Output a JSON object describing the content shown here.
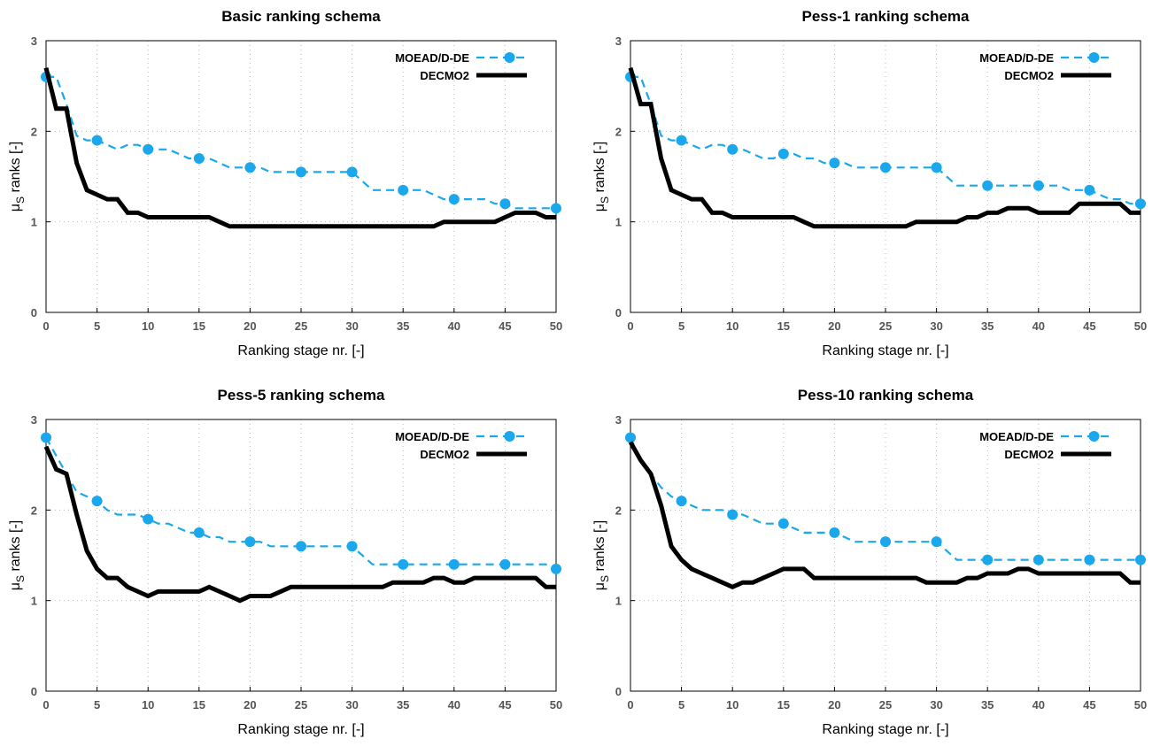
{
  "colors": {
    "moead": "#1aa7ec",
    "decmo2": "#000000"
  },
  "chart_data": [
    {
      "type": "line",
      "title": "Basic ranking schema",
      "xlabel": "Ranking stage nr. [-]",
      "ylabel_main": "μ",
      "ylabel_sub": "S",
      "ylabel_rest": " ranks [-]",
      "xlim": [
        0,
        50
      ],
      "ylim": [
        0,
        3
      ],
      "xticks": [
        0,
        5,
        10,
        15,
        20,
        25,
        30,
        35,
        40,
        45,
        50
      ],
      "yticks": [
        0,
        1,
        2,
        3
      ],
      "grid": true,
      "legend_position": "top-right",
      "series": [
        {
          "name": "MOEAD/D-DE",
          "style": "dashed-markers",
          "x": [
            0,
            1,
            2,
            3,
            4,
            5,
            6,
            7,
            8,
            9,
            10,
            11,
            12,
            13,
            14,
            15,
            16,
            17,
            18,
            19,
            20,
            21,
            22,
            23,
            24,
            25,
            26,
            27,
            28,
            29,
            30,
            31,
            32,
            33,
            34,
            35,
            36,
            37,
            38,
            39,
            40,
            41,
            42,
            43,
            44,
            45,
            46,
            47,
            48,
            49,
            50
          ],
          "y": [
            2.6,
            2.6,
            2.3,
            1.95,
            1.9,
            1.9,
            1.85,
            1.8,
            1.85,
            1.85,
            1.8,
            1.8,
            1.8,
            1.75,
            1.7,
            1.7,
            1.7,
            1.65,
            1.6,
            1.6,
            1.6,
            1.6,
            1.55,
            1.55,
            1.55,
            1.55,
            1.55,
            1.55,
            1.55,
            1.55,
            1.55,
            1.45,
            1.35,
            1.35,
            1.35,
            1.35,
            1.35,
            1.35,
            1.3,
            1.25,
            1.25,
            1.25,
            1.25,
            1.25,
            1.2,
            1.2,
            1.15,
            1.15,
            1.15,
            1.15,
            1.15
          ],
          "markers": [
            0,
            5,
            10,
            15,
            20,
            25,
            30,
            35,
            40,
            45,
            50
          ]
        },
        {
          "name": "DECMO2",
          "style": "thick-solid",
          "x": [
            0,
            1,
            2,
            3,
            4,
            5,
            6,
            7,
            8,
            9,
            10,
            11,
            12,
            13,
            14,
            15,
            16,
            17,
            18,
            19,
            20,
            21,
            22,
            23,
            24,
            25,
            26,
            27,
            28,
            29,
            30,
            31,
            32,
            33,
            34,
            35,
            36,
            37,
            38,
            39,
            40,
            41,
            42,
            43,
            44,
            45,
            46,
            47,
            48,
            49,
            50
          ],
          "y": [
            2.7,
            2.25,
            2.25,
            1.65,
            1.35,
            1.3,
            1.25,
            1.25,
            1.1,
            1.1,
            1.05,
            1.05,
            1.05,
            1.05,
            1.05,
            1.05,
            1.05,
            1.0,
            0.95,
            0.95,
            0.95,
            0.95,
            0.95,
            0.95,
            0.95,
            0.95,
            0.95,
            0.95,
            0.95,
            0.95,
            0.95,
            0.95,
            0.95,
            0.95,
            0.95,
            0.95,
            0.95,
            0.95,
            0.95,
            1.0,
            1.0,
            1.0,
            1.0,
            1.0,
            1.0,
            1.05,
            1.1,
            1.1,
            1.1,
            1.05,
            1.05
          ]
        }
      ]
    },
    {
      "type": "line",
      "title": "Pess-1 ranking schema",
      "xlabel": "Ranking stage nr. [-]",
      "ylabel_main": "μ",
      "ylabel_sub": "S",
      "ylabel_rest": " ranks [-]",
      "xlim": [
        0,
        50
      ],
      "ylim": [
        0,
        3
      ],
      "xticks": [
        0,
        5,
        10,
        15,
        20,
        25,
        30,
        35,
        40,
        45,
        50
      ],
      "yticks": [
        0,
        1,
        2,
        3
      ],
      "grid": true,
      "legend_position": "top-right",
      "series": [
        {
          "name": "MOEAD/D-DE",
          "style": "dashed-markers",
          "x": [
            0,
            1,
            2,
            3,
            4,
            5,
            6,
            7,
            8,
            9,
            10,
            11,
            12,
            13,
            14,
            15,
            16,
            17,
            18,
            19,
            20,
            21,
            22,
            23,
            24,
            25,
            26,
            27,
            28,
            29,
            30,
            31,
            32,
            33,
            34,
            35,
            36,
            37,
            38,
            39,
            40,
            41,
            42,
            43,
            44,
            45,
            46,
            47,
            48,
            49,
            50
          ],
          "y": [
            2.6,
            2.6,
            2.3,
            1.95,
            1.9,
            1.9,
            1.85,
            1.8,
            1.85,
            1.85,
            1.8,
            1.8,
            1.75,
            1.7,
            1.7,
            1.75,
            1.75,
            1.7,
            1.7,
            1.65,
            1.65,
            1.65,
            1.6,
            1.6,
            1.6,
            1.6,
            1.6,
            1.6,
            1.6,
            1.6,
            1.6,
            1.5,
            1.4,
            1.4,
            1.4,
            1.4,
            1.4,
            1.4,
            1.4,
            1.4,
            1.4,
            1.4,
            1.4,
            1.35,
            1.35,
            1.35,
            1.3,
            1.25,
            1.25,
            1.2,
            1.2
          ],
          "markers": [
            0,
            5,
            10,
            15,
            20,
            25,
            30,
            35,
            40,
            45,
            50
          ]
        },
        {
          "name": "DECMO2",
          "style": "thick-solid",
          "x": [
            0,
            1,
            2,
            3,
            4,
            5,
            6,
            7,
            8,
            9,
            10,
            11,
            12,
            13,
            14,
            15,
            16,
            17,
            18,
            19,
            20,
            21,
            22,
            23,
            24,
            25,
            26,
            27,
            28,
            29,
            30,
            31,
            32,
            33,
            34,
            35,
            36,
            37,
            38,
            39,
            40,
            41,
            42,
            43,
            44,
            45,
            46,
            47,
            48,
            49,
            50
          ],
          "y": [
            2.7,
            2.3,
            2.3,
            1.7,
            1.35,
            1.3,
            1.25,
            1.25,
            1.1,
            1.1,
            1.05,
            1.05,
            1.05,
            1.05,
            1.05,
            1.05,
            1.05,
            1.0,
            0.95,
            0.95,
            0.95,
            0.95,
            0.95,
            0.95,
            0.95,
            0.95,
            0.95,
            0.95,
            1.0,
            1.0,
            1.0,
            1.0,
            1.0,
            1.05,
            1.05,
            1.1,
            1.1,
            1.15,
            1.15,
            1.15,
            1.1,
            1.1,
            1.1,
            1.1,
            1.2,
            1.2,
            1.2,
            1.2,
            1.2,
            1.1,
            1.1
          ]
        }
      ]
    },
    {
      "type": "line",
      "title": "Pess-5 ranking schema",
      "xlabel": "Ranking stage nr. [-]",
      "ylabel_main": "μ",
      "ylabel_sub": "S",
      "ylabel_rest": " ranks [-]",
      "xlim": [
        0,
        50
      ],
      "ylim": [
        0,
        3
      ],
      "xticks": [
        0,
        5,
        10,
        15,
        20,
        25,
        30,
        35,
        40,
        45,
        50
      ],
      "yticks": [
        0,
        1,
        2,
        3
      ],
      "grid": true,
      "legend_position": "top-right",
      "series": [
        {
          "name": "MOEAD/D-DE",
          "style": "dashed-markers",
          "x": [
            0,
            1,
            2,
            3,
            4,
            5,
            6,
            7,
            8,
            9,
            10,
            11,
            12,
            13,
            14,
            15,
            16,
            17,
            18,
            19,
            20,
            21,
            22,
            23,
            24,
            25,
            26,
            27,
            28,
            29,
            30,
            31,
            32,
            33,
            34,
            35,
            36,
            37,
            38,
            39,
            40,
            41,
            42,
            43,
            44,
            45,
            46,
            47,
            48,
            49,
            50
          ],
          "y": [
            2.8,
            2.6,
            2.4,
            2.2,
            2.15,
            2.1,
            2.0,
            1.95,
            1.95,
            1.95,
            1.9,
            1.85,
            1.85,
            1.8,
            1.75,
            1.75,
            1.7,
            1.7,
            1.65,
            1.65,
            1.65,
            1.65,
            1.6,
            1.6,
            1.6,
            1.6,
            1.6,
            1.6,
            1.6,
            1.6,
            1.6,
            1.5,
            1.4,
            1.4,
            1.4,
            1.4,
            1.4,
            1.4,
            1.4,
            1.4,
            1.4,
            1.4,
            1.4,
            1.4,
            1.4,
            1.4,
            1.4,
            1.4,
            1.4,
            1.4,
            1.35
          ],
          "markers": [
            0,
            5,
            10,
            15,
            20,
            25,
            30,
            35,
            40,
            45,
            50
          ]
        },
        {
          "name": "DECMO2",
          "style": "thick-solid",
          "x": [
            0,
            1,
            2,
            3,
            4,
            5,
            6,
            7,
            8,
            9,
            10,
            11,
            12,
            13,
            14,
            15,
            16,
            17,
            18,
            19,
            20,
            21,
            22,
            23,
            24,
            25,
            26,
            27,
            28,
            29,
            30,
            31,
            32,
            33,
            34,
            35,
            36,
            37,
            38,
            39,
            40,
            41,
            42,
            43,
            44,
            45,
            46,
            47,
            48,
            49,
            50
          ],
          "y": [
            2.7,
            2.45,
            2.4,
            1.95,
            1.55,
            1.35,
            1.25,
            1.25,
            1.15,
            1.1,
            1.05,
            1.1,
            1.1,
            1.1,
            1.1,
            1.1,
            1.15,
            1.1,
            1.05,
            1.0,
            1.05,
            1.05,
            1.05,
            1.1,
            1.15,
            1.15,
            1.15,
            1.15,
            1.15,
            1.15,
            1.15,
            1.15,
            1.15,
            1.15,
            1.2,
            1.2,
            1.2,
            1.2,
            1.25,
            1.25,
            1.2,
            1.2,
            1.25,
            1.25,
            1.25,
            1.25,
            1.25,
            1.25,
            1.25,
            1.15,
            1.15
          ]
        }
      ]
    },
    {
      "type": "line",
      "title": "Pess-10 ranking schema",
      "xlabel": "Ranking stage nr. [-]",
      "ylabel_main": "μ",
      "ylabel_sub": "S",
      "ylabel_rest": " ranks [-]",
      "xlim": [
        0,
        50
      ],
      "ylim": [
        0,
        3
      ],
      "xticks": [
        0,
        5,
        10,
        15,
        20,
        25,
        30,
        35,
        40,
        45,
        50
      ],
      "yticks": [
        0,
        1,
        2,
        3
      ],
      "grid": true,
      "legend_position": "top-right",
      "series": [
        {
          "name": "MOEAD/D-DE",
          "style": "dashed-markers",
          "x": [
            0,
            1,
            2,
            3,
            4,
            5,
            6,
            7,
            8,
            9,
            10,
            11,
            12,
            13,
            14,
            15,
            16,
            17,
            18,
            19,
            20,
            21,
            22,
            23,
            24,
            25,
            26,
            27,
            28,
            29,
            30,
            31,
            32,
            33,
            34,
            35,
            36,
            37,
            38,
            39,
            40,
            41,
            42,
            43,
            44,
            45,
            46,
            47,
            48,
            49,
            50
          ],
          "y": [
            2.8,
            2.55,
            2.4,
            2.25,
            2.15,
            2.1,
            2.05,
            2.0,
            2.0,
            2.0,
            1.95,
            1.95,
            1.9,
            1.85,
            1.85,
            1.85,
            1.8,
            1.75,
            1.75,
            1.75,
            1.75,
            1.7,
            1.65,
            1.65,
            1.65,
            1.65,
            1.65,
            1.65,
            1.65,
            1.65,
            1.65,
            1.55,
            1.45,
            1.45,
            1.45,
            1.45,
            1.45,
            1.45,
            1.45,
            1.45,
            1.45,
            1.45,
            1.45,
            1.45,
            1.45,
            1.45,
            1.45,
            1.45,
            1.45,
            1.45,
            1.45
          ],
          "markers": [
            0,
            5,
            10,
            15,
            20,
            25,
            30,
            35,
            40,
            45,
            50
          ]
        },
        {
          "name": "DECMO2",
          "style": "thick-solid",
          "x": [
            0,
            1,
            2,
            3,
            4,
            5,
            6,
            7,
            8,
            9,
            10,
            11,
            12,
            13,
            14,
            15,
            16,
            17,
            18,
            19,
            20,
            21,
            22,
            23,
            24,
            25,
            26,
            27,
            28,
            29,
            30,
            31,
            32,
            33,
            34,
            35,
            36,
            37,
            38,
            39,
            40,
            41,
            42,
            43,
            44,
            45,
            46,
            47,
            48,
            49,
            50
          ],
          "y": [
            2.75,
            2.55,
            2.4,
            2.05,
            1.6,
            1.45,
            1.35,
            1.3,
            1.25,
            1.2,
            1.15,
            1.2,
            1.2,
            1.25,
            1.3,
            1.35,
            1.35,
            1.35,
            1.25,
            1.25,
            1.25,
            1.25,
            1.25,
            1.25,
            1.25,
            1.25,
            1.25,
            1.25,
            1.25,
            1.2,
            1.2,
            1.2,
            1.2,
            1.25,
            1.25,
            1.3,
            1.3,
            1.3,
            1.35,
            1.35,
            1.3,
            1.3,
            1.3,
            1.3,
            1.3,
            1.3,
            1.3,
            1.3,
            1.3,
            1.2,
            1.2
          ]
        }
      ]
    }
  ]
}
